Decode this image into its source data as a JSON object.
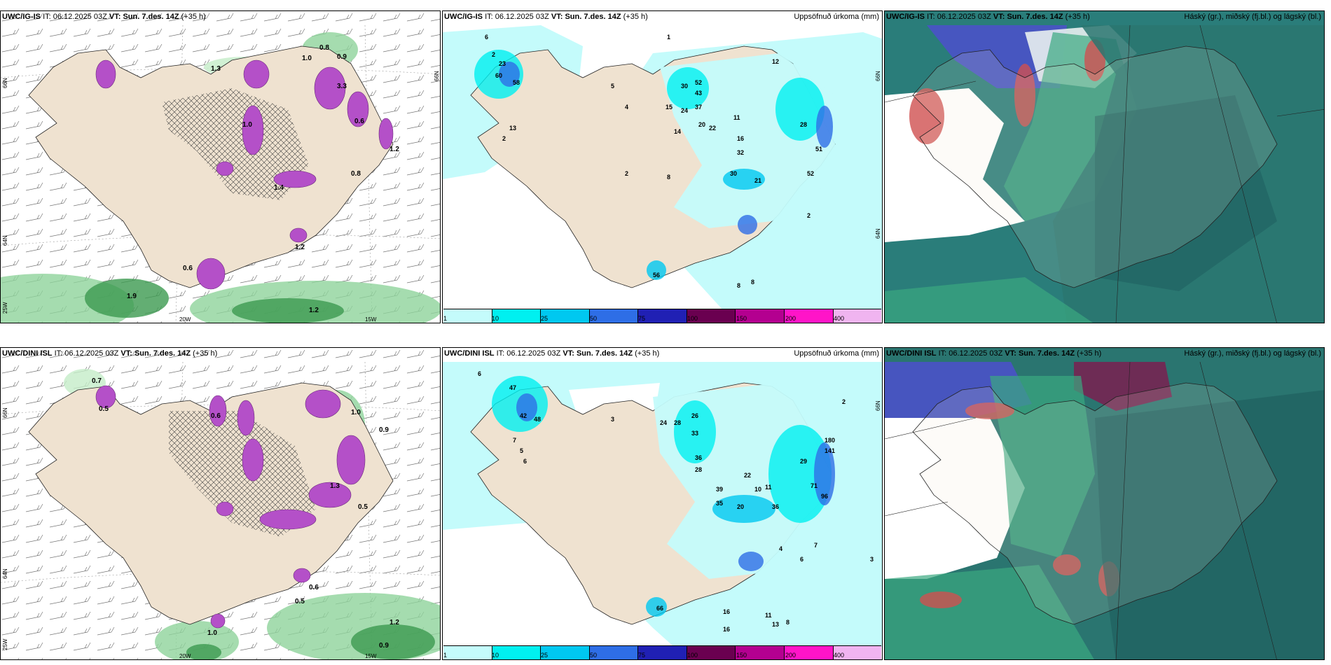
{
  "panels": {
    "p1": {
      "model": "UWC/IG-IS",
      "it_label": "IT:",
      "it": "06.12.2025 03Z",
      "vt_label": "VT:",
      "vt": "Sun. 7.des. 14Z",
      "lead": "(+35 h)",
      "right_title": ""
    },
    "p2": {
      "model": "UWC/IG-IS",
      "it_label": "IT:",
      "it": "06.12.2025 03Z",
      "vt_label": "VT:",
      "vt": "Sun. 7.des. 14Z",
      "lead": "(+35 h)",
      "right_title": "Uppsöfnuð úrkoma (mm)"
    },
    "p3": {
      "model": "UWC/IG-IS",
      "it_label": "IT:",
      "it": "06.12.2025 03Z",
      "vt_label": "VT:",
      "vt": "Sun. 7.des. 14Z",
      "lead": "(+35 h)",
      "right_title": "Háský (gr.), miðský (fj.bl.) og lágský (bl.)"
    },
    "p4": {
      "model": "UWC/DINI ISL",
      "it_label": "IT:",
      "it": "06.12.2025 03Z",
      "vt_label": "VT:",
      "vt": "Sun. 7.des. 14Z",
      "lead": "(+35 h)",
      "right_title": ""
    },
    "p5": {
      "model": "UWC/DINI ISL",
      "it_label": "IT:",
      "it": "06.12.2025 03Z",
      "vt_label": "VT:",
      "vt": "Sun. 7.des. 14Z",
      "lead": "(+35 h)",
      "right_title": "Uppsöfnuð úrkoma (mm)"
    },
    "p6": {
      "model": "UWC/DINI ISL",
      "it_label": "IT:",
      "it": "06.12.2025 03Z",
      "vt_label": "VT:",
      "vt": "Sun. 7.des. 14Z",
      "lead": "(+35 h)",
      "right_title": "Háský (gr.), miðský (fj.bl.) og lágský (bl.)"
    }
  },
  "colorbar": {
    "ticks": [
      "1",
      "10",
      "25",
      "50",
      "75",
      "100",
      "150",
      "200",
      "400"
    ],
    "colors": [
      "#c4fbfb",
      "#00f0f0",
      "#00c8f0",
      "#2e6ee6",
      "#2020b4",
      "#6a0050",
      "#b40090",
      "#ff14c8",
      "#f0b4f0"
    ]
  },
  "axis_labels": {
    "lat_top": "66N",
    "lat_mid": "64N",
    "lat_bot": "25W",
    "lon_20w": "20W",
    "lon_15w": "15W"
  },
  "colors": {
    "land": "#efe2d0",
    "precip_light": "#c4fbfb",
    "snow_magenta": "#b450c8",
    "rain_green": "#3c9a50",
    "cloud_high": "#1f6e6e",
    "cloud_mid": "#3aa880",
    "cloud_low": "#4a52c8"
  },
  "precip_labels_top": [
    "6",
    "2",
    "23",
    "60",
    "58",
    "13",
    "2",
    "5",
    "4",
    "1",
    "30",
    "52",
    "43",
    "37",
    "24",
    "20",
    "22",
    "15",
    "14",
    "11",
    "16",
    "32",
    "30",
    "21",
    "28",
    "51",
    "52",
    "2",
    "12",
    "8",
    "8",
    "8",
    "2",
    "56"
  ],
  "precip_labels_bottom": [
    "6",
    "47",
    "42",
    "48",
    "3",
    "7",
    "5",
    "6",
    "24",
    "28",
    "26",
    "33",
    "36",
    "28",
    "22",
    "39",
    "10",
    "11",
    "35",
    "20",
    "36",
    "29",
    "71",
    "96",
    "180",
    "141",
    "2",
    "16",
    "4",
    "7",
    "6",
    "8",
    "3",
    "66",
    "16",
    "13",
    "11"
  ],
  "temp_labels_top": [
    "0.8",
    "1.0",
    "0.9",
    "1.3",
    "3.3",
    "0.6",
    "1.2",
    "1.0",
    "0.8",
    "1.4",
    "1.2",
    "0.6",
    "1.9",
    "1.2"
  ],
  "temp_labels_bottom": [
    "0.7",
    "0.5",
    "0.6",
    "1.0",
    "0.9",
    "1.3",
    "0.5",
    "0.6",
    "1.0",
    "1.2",
    "0.9",
    "0.5"
  ]
}
